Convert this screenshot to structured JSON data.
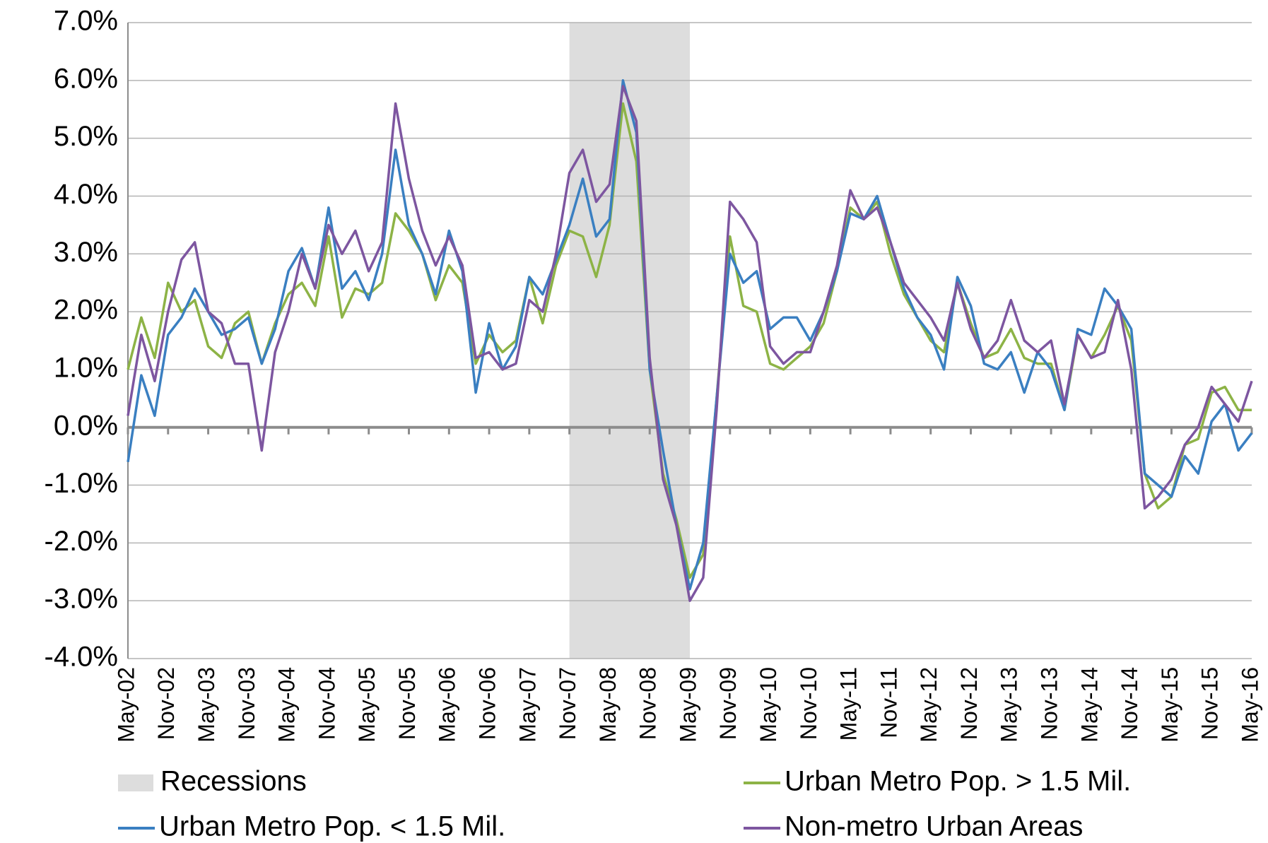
{
  "chart_data": {
    "type": "line",
    "categories": [
      "May-02",
      null,
      null,
      "Nov-02",
      null,
      null,
      "May-03",
      null,
      null,
      "Nov-03",
      null,
      null,
      "May-04",
      null,
      null,
      "Nov-04",
      null,
      null,
      "May-05",
      null,
      null,
      "Nov-05",
      null,
      null,
      "May-06",
      null,
      null,
      "Nov-06",
      null,
      null,
      "May-07",
      null,
      null,
      "Nov-07",
      null,
      null,
      "May-08",
      null,
      null,
      "Nov-08",
      null,
      null,
      "May-09",
      null,
      null,
      "Nov-09",
      null,
      null,
      "May-10",
      null,
      null,
      "Nov-10",
      null,
      null,
      "May-11",
      null,
      null,
      "Nov-11",
      null,
      null,
      "May-12",
      null,
      null,
      "Nov-12",
      null,
      null,
      "May-13",
      null,
      null,
      "Nov-13",
      null,
      null,
      "May-14",
      null,
      null,
      "Nov-14",
      null,
      null,
      "May-15",
      null,
      null,
      "Nov-15",
      null,
      null,
      "May-16"
    ],
    "series": [
      {
        "name": "Urban Metro Pop. > 1.5 Mil.",
        "color": "#8db346",
        "values": [
          1.0,
          1.9,
          1.2,
          2.5,
          2.0,
          2.2,
          1.4,
          1.2,
          1.8,
          2.0,
          1.1,
          1.8,
          2.3,
          2.5,
          2.1,
          3.3,
          1.9,
          2.4,
          2.3,
          2.5,
          3.7,
          3.4,
          3.0,
          2.2,
          2.8,
          2.5,
          1.1,
          1.6,
          1.3,
          1.5,
          2.6,
          1.8,
          2.8,
          3.4,
          3.3,
          2.6,
          3.5,
          5.6,
          4.6,
          1.0,
          -0.8,
          -1.6,
          -2.6,
          -2.2,
          0.5,
          3.3,
          2.1,
          2.0,
          1.1,
          1.0,
          1.2,
          1.4,
          1.8,
          2.7,
          3.8,
          3.6,
          3.9,
          3.0,
          2.3,
          1.9,
          1.5,
          1.3,
          2.5,
          1.8,
          1.2,
          1.3,
          1.7,
          1.2,
          1.1,
          1.1,
          0.3,
          1.6,
          1.2,
          1.6,
          2.1,
          1.5,
          -0.8,
          -1.4,
          -1.2,
          -0.3,
          -0.2,
          0.6,
          0.7,
          0.3,
          0.3
        ]
      },
      {
        "name": "Urban Metro Pop. < 1.5 Mil.",
        "color": "#3a7fc1",
        "values": [
          -0.6,
          0.9,
          0.2,
          1.6,
          1.9,
          2.4,
          2.0,
          1.6,
          1.7,
          1.9,
          1.1,
          1.7,
          2.7,
          3.1,
          2.4,
          3.8,
          2.4,
          2.7,
          2.2,
          3.0,
          4.8,
          3.5,
          3.0,
          2.3,
          3.4,
          2.7,
          0.6,
          1.8,
          1.0,
          1.4,
          2.6,
          2.3,
          2.9,
          3.5,
          4.3,
          3.3,
          3.6,
          6.0,
          5.1,
          1.0,
          -0.4,
          -1.7,
          -2.8,
          -2.0,
          0.5,
          3.0,
          2.5,
          2.7,
          1.7,
          1.9,
          1.9,
          1.5,
          2.0,
          2.7,
          3.7,
          3.6,
          4.0,
          3.2,
          2.4,
          1.9,
          1.6,
          1.0,
          2.6,
          2.1,
          1.1,
          1.0,
          1.3,
          0.6,
          1.3,
          1.0,
          0.3,
          1.7,
          1.6,
          2.4,
          2.1,
          1.7,
          -0.8,
          -1.0,
          -1.2,
          -0.5,
          -0.8,
          0.1,
          0.4,
          -0.4,
          -0.1
        ]
      },
      {
        "name": "Non-metro Urban Areas",
        "color": "#7d56a0",
        "values": [
          0.2,
          1.6,
          0.8,
          2.0,
          2.9,
          3.2,
          2.0,
          1.8,
          1.1,
          1.1,
          -0.4,
          1.3,
          2.0,
          3.0,
          2.4,
          3.5,
          3.0,
          3.4,
          2.7,
          3.2,
          5.6,
          4.3,
          3.4,
          2.8,
          3.3,
          2.8,
          1.2,
          1.3,
          1.0,
          1.1,
          2.2,
          2.0,
          3.0,
          4.4,
          4.8,
          3.9,
          4.2,
          5.9,
          5.3,
          1.2,
          -0.9,
          -1.7,
          -3.0,
          -2.6,
          0.3,
          3.9,
          3.6,
          3.2,
          1.4,
          1.1,
          1.3,
          1.3,
          2.0,
          2.8,
          4.1,
          3.6,
          3.8,
          3.2,
          2.5,
          2.2,
          1.9,
          1.5,
          2.5,
          1.7,
          1.2,
          1.5,
          2.2,
          1.5,
          1.3,
          1.5,
          0.4,
          1.6,
          1.2,
          1.3,
          2.2,
          1.0,
          -1.4,
          -1.2,
          -0.9,
          -0.3,
          0.0,
          0.7,
          0.4,
          0.1,
          0.8
        ]
      }
    ],
    "recession": {
      "name": "Recessions",
      "color": "#dddddd",
      "start": "Nov-07",
      "end": "May-09"
    },
    "ylim": [
      -4,
      7
    ],
    "yticks": [
      {
        "value": -4,
        "label": "-4.0%"
      },
      {
        "value": -3,
        "label": "-3.0%"
      },
      {
        "value": -2,
        "label": "-2.0%"
      },
      {
        "value": -1,
        "label": "-1.0%"
      },
      {
        "value": 0,
        "label": "0.0%"
      },
      {
        "value": 1,
        "label": "1.0%"
      },
      {
        "value": 2,
        "label": "2.0%"
      },
      {
        "value": 3,
        "label": "3.0%"
      },
      {
        "value": 4,
        "label": "4.0%"
      },
      {
        "value": 5,
        "label": "5.0%"
      },
      {
        "value": 6,
        "label": "6.0%"
      },
      {
        "value": 7,
        "label": "7.0%"
      }
    ],
    "grid": true
  }
}
